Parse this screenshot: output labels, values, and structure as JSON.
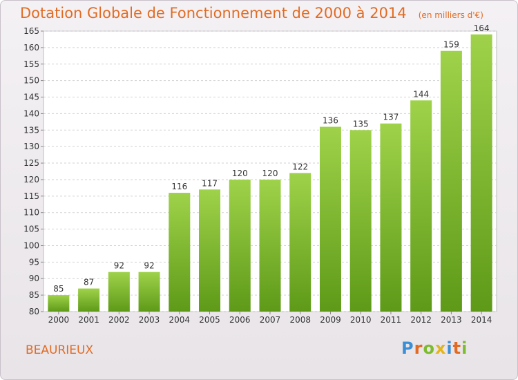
{
  "chart_data": {
    "type": "bar",
    "title": "Dotation Globale de Fonctionnement de 2000 à 2014",
    "subtitle": "(en milliers d'€)",
    "categories": [
      "2000",
      "2001",
      "2002",
      "2003",
      "2004",
      "2005",
      "2006",
      "2007",
      "2008",
      "2009",
      "2010",
      "2011",
      "2012",
      "2013",
      "2014"
    ],
    "values": [
      85,
      87,
      92,
      92,
      116,
      117,
      120,
      120,
      122,
      136,
      135,
      137,
      144,
      159,
      164
    ],
    "ylim": [
      80,
      165
    ],
    "yticks": [
      80,
      85,
      90,
      95,
      100,
      105,
      110,
      115,
      120,
      125,
      130,
      135,
      140,
      145,
      150,
      155,
      160,
      165
    ],
    "grid": true,
    "bar_color": "#7dbb2f"
  },
  "footer": {
    "city": "BEAURIEUX",
    "logo_letters": [
      "P",
      "r",
      "o",
      "x",
      "i",
      "t",
      "i"
    ],
    "logo_colors": [
      "#3b8fd6",
      "#e26b23",
      "#7dbb2f",
      "#e2b51d",
      "#3b8fd6",
      "#e26b23",
      "#7dbb2f"
    ]
  }
}
